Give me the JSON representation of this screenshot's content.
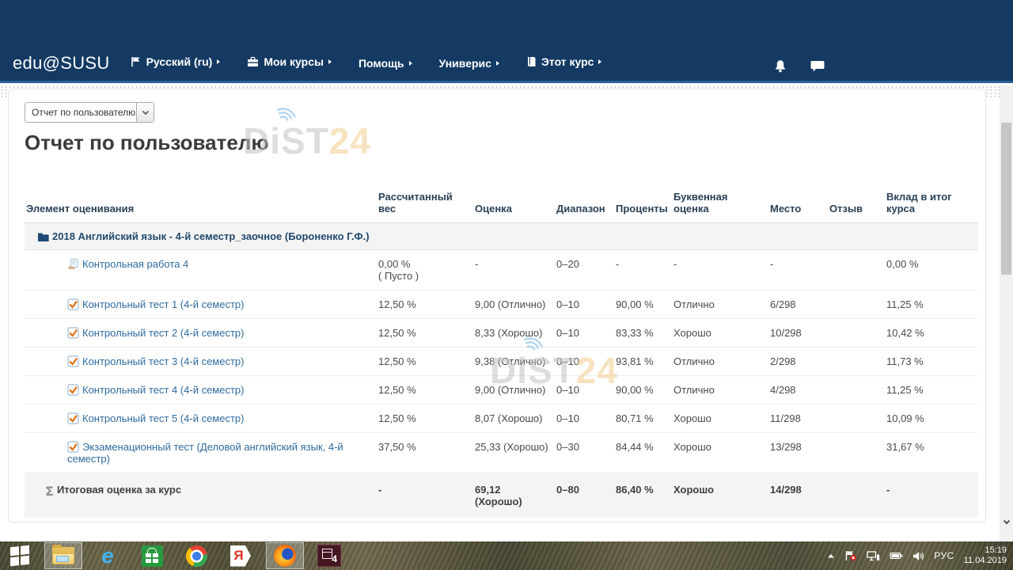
{
  "colors": {
    "navy": "#143a63",
    "link_blue": "#2e6b9f",
    "check_orange": "#e07318",
    "watermark_orange": "#f2cd8e"
  },
  "navbar": {
    "brand": "edu@SUSU",
    "items": [
      {
        "key": "language",
        "label": "Русский (ru)",
        "icon": "flag-icon"
      },
      {
        "key": "my-courses",
        "label": "Мои курсы",
        "icon": "briefcase-icon"
      },
      {
        "key": "help",
        "label": "Помощь",
        "icon": null
      },
      {
        "key": "univeris",
        "label": "Универис",
        "icon": null
      },
      {
        "key": "this-course",
        "label": "Этот курс",
        "icon": "book-icon"
      }
    ]
  },
  "report": {
    "selector_value": "Отчет по пользователю",
    "title": "Отчет по пользователю",
    "watermark": {
      "gray": "DiST",
      "orange": "24"
    }
  },
  "table": {
    "headers": [
      "Элемент оценивания",
      "Рассчитанный вес",
      "Оценка",
      "Диапазон",
      "Проценты",
      "Буквенная оценка",
      "Место",
      "Отзыв",
      "Вклад в итог курса"
    ],
    "rows": [
      {
        "type": "category",
        "name": "2018 Английский язык - 4-й семестр_заочное (Бороненко Г.Ф.)"
      },
      {
        "type": "assignment",
        "name": "Контрольная работа 4",
        "weight": "0,00 %\n( Пусто )",
        "grade": "-",
        "range": "0–20",
        "percent": "-",
        "letter": "-",
        "rank": "-",
        "feedback": "",
        "contribution": "0,00 %"
      },
      {
        "type": "quiz",
        "name": "Контрольный тест 1 (4-й семестр)",
        "weight": "12,50 %",
        "grade": "9,00 (Отлично)",
        "range": "0–10",
        "percent": "90,00 %",
        "letter": "Отлично",
        "rank": "6/298",
        "feedback": "",
        "contribution": "11,25 %"
      },
      {
        "type": "quiz",
        "name": "Контрольный тест 2 (4-й семестр)",
        "weight": "12,50 %",
        "grade": "8,33 (Хорошо)",
        "range": "0–10",
        "percent": "83,33 %",
        "letter": "Хорошо",
        "rank": "10/298",
        "feedback": "",
        "contribution": "10,42 %"
      },
      {
        "type": "quiz",
        "name": "Контрольный тест 3 (4-й семестр)",
        "weight": "12,50 %",
        "grade": "9,38 (Отлично)",
        "range": "0–10",
        "percent": "93,81 %",
        "letter": "Отлично",
        "rank": "2/298",
        "feedback": "",
        "contribution": "11,73 %"
      },
      {
        "type": "quiz",
        "name": "Контрольный тест 4 (4-й семестр)",
        "weight": "12,50 %",
        "grade": "9,00 (Отлично)",
        "range": "0–10",
        "percent": "90,00 %",
        "letter": "Отлично",
        "rank": "4/298",
        "feedback": "",
        "contribution": "11,25 %"
      },
      {
        "type": "quiz",
        "name": "Контрольный тест 5 (4-й семестр)",
        "weight": "12,50 %",
        "grade": "8,07 (Хорошо)",
        "range": "0–10",
        "percent": "80,71 %",
        "letter": "Хорошо",
        "rank": "11/298",
        "feedback": "",
        "contribution": "10,09 %"
      },
      {
        "type": "quiz",
        "name": "Экзаменационный тест (Деловой английский язык, 4-й семестр)",
        "weight": "37,50 %",
        "grade": "25,33 (Хорошо)",
        "range": "0–30",
        "percent": "84,44 %",
        "letter": "Хорошо",
        "rank": "13/298",
        "feedback": "",
        "contribution": "31,67 %"
      },
      {
        "type": "total",
        "name": "Итоговая оценка за курс",
        "weight": "-",
        "grade": "69,12\n(Хорошо)",
        "range": "0–80",
        "percent": "86,40 %",
        "letter": "Хорошо",
        "rank": "14/298",
        "feedback": "",
        "contribution": "-"
      }
    ]
  },
  "taskbar": {
    "apps": [
      {
        "key": "start",
        "active": false
      },
      {
        "key": "explorer",
        "active": true
      },
      {
        "key": "ie",
        "active": false,
        "glyph": "e"
      },
      {
        "key": "store",
        "active": false
      },
      {
        "key": "chrome",
        "active": false
      },
      {
        "key": "yandex",
        "active": false,
        "glyph": "Я"
      },
      {
        "key": "firefox",
        "active": true
      },
      {
        "key": "box4",
        "active": false,
        "glyph": "4"
      }
    ],
    "tray": {
      "icons": [
        "tray-expand-icon",
        "action-center-flag-icon",
        "network-icon",
        "battery-icon",
        "volume-icon"
      ],
      "lang": "РУС",
      "time": "15:19",
      "date": "11.04.2019"
    }
  }
}
